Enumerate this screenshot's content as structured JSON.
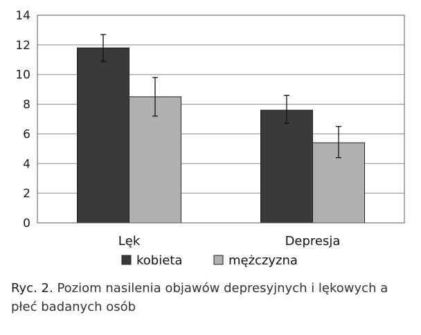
{
  "chart_data": {
    "type": "bar",
    "categories": [
      "Lęk",
      "Depresja"
    ],
    "series": [
      {
        "name": "kobieta",
        "color": "#3a3a3a",
        "values": [
          11.8,
          7.6
        ],
        "error": [
          [
            10.9,
            12.7
          ],
          [
            6.7,
            8.6
          ]
        ]
      },
      {
        "name": "mężczyzna",
        "color": "#b0b0b0",
        "values": [
          8.5,
          5.4
        ],
        "error": [
          [
            7.2,
            9.8
          ],
          [
            4.4,
            6.5
          ]
        ]
      }
    ],
    "ylim": [
      0,
      14
    ],
    "yticks": [
      "0",
      "2",
      "4",
      "6",
      "8",
      "10",
      "12",
      "14"
    ],
    "grid": true,
    "legend_position": "bottom"
  },
  "caption": {
    "prefix": "Ryc. 2.",
    "text": "Poziom nasilenia objawów depresyjnych i lękowych a płeć badanych osób"
  }
}
